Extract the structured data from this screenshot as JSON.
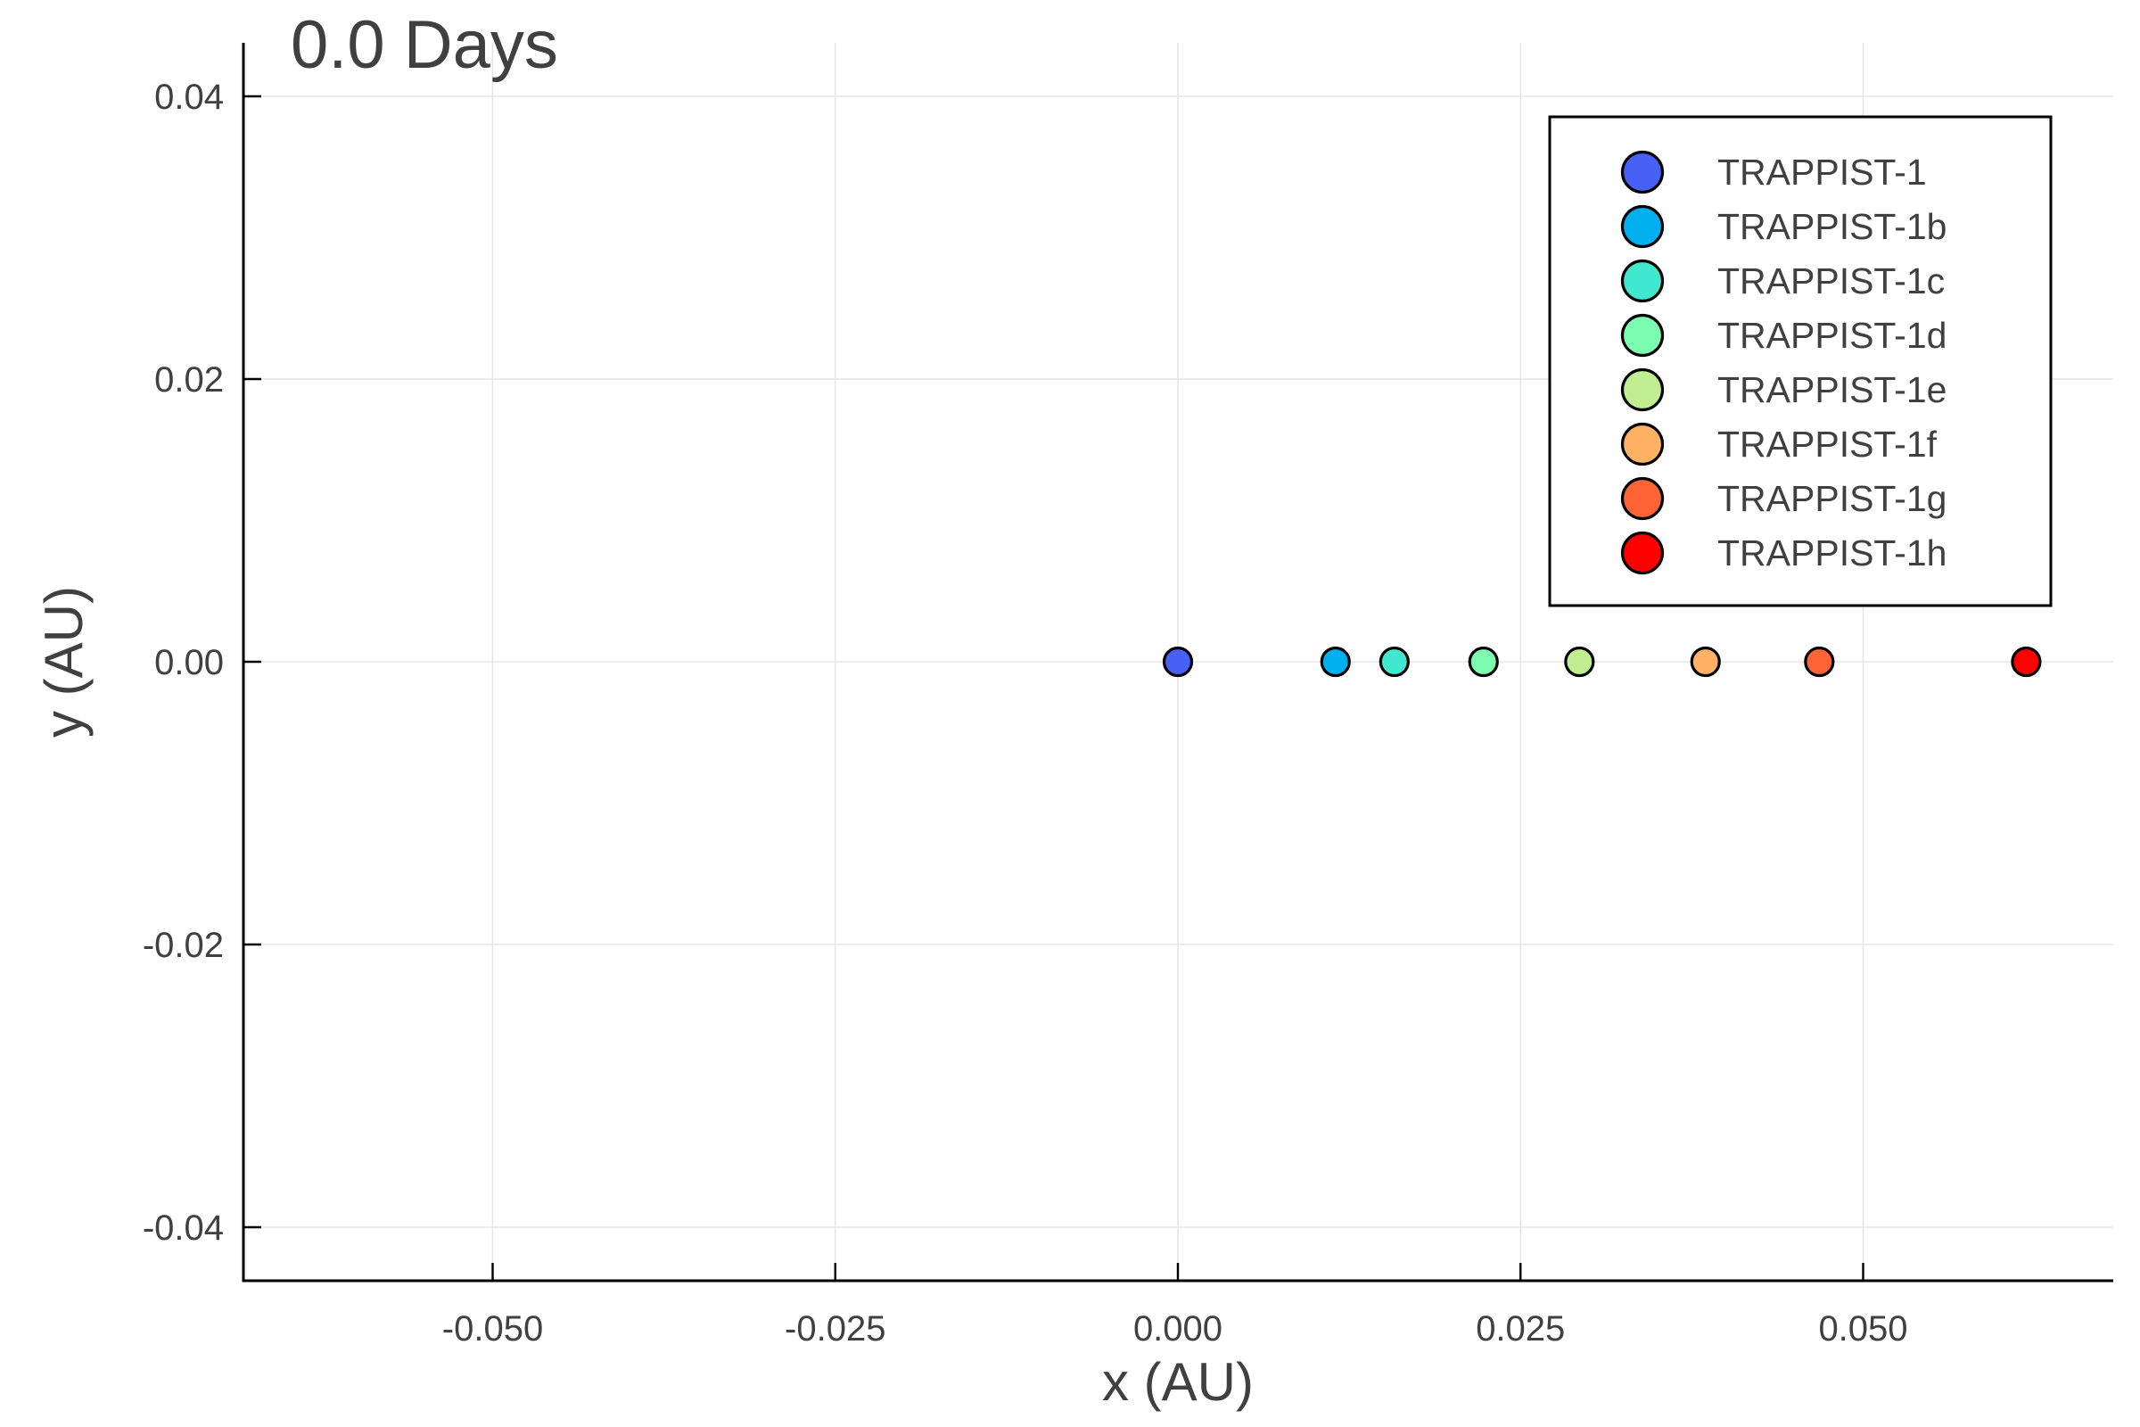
{
  "chart_data": {
    "type": "scatter",
    "title": "0.0 Days",
    "xlabel": "x (AU)",
    "ylabel": "y (AU)",
    "xlim": [
      -0.068,
      0.068
    ],
    "ylim": [
      -0.0438,
      0.0438
    ],
    "xticks": [
      -0.05,
      -0.025,
      0.0,
      0.025,
      0.05
    ],
    "xtick_labels": [
      "-0.050",
      "-0.025",
      "0.000",
      "0.025",
      "0.050"
    ],
    "yticks": [
      -0.04,
      -0.02,
      0.0,
      0.02,
      0.04
    ],
    "ytick_labels": [
      "-0.04",
      "-0.02",
      "0.00",
      "0.02",
      "0.04"
    ],
    "grid": true,
    "legend_position": "top-right",
    "series": [
      {
        "name": "TRAPPIST-1",
        "color": "#4760f5",
        "x": [
          0.0
        ],
        "y": [
          0.0
        ]
      },
      {
        "name": "TRAPPIST-1b",
        "color": "#00b0ee",
        "x": [
          0.0115
        ],
        "y": [
          0.0
        ]
      },
      {
        "name": "TRAPPIST-1c",
        "color": "#40e8d0",
        "x": [
          0.0158
        ],
        "y": [
          0.0
        ]
      },
      {
        "name": "TRAPPIST-1d",
        "color": "#7cfcb0",
        "x": [
          0.0223
        ],
        "y": [
          0.0
        ]
      },
      {
        "name": "TRAPPIST-1e",
        "color": "#c0ee90",
        "x": [
          0.0293
        ],
        "y": [
          0.0
        ]
      },
      {
        "name": "TRAPPIST-1f",
        "color": "#ffb266",
        "x": [
          0.0385
        ],
        "y": [
          0.0
        ]
      },
      {
        "name": "TRAPPIST-1g",
        "color": "#ff6436",
        "x": [
          0.0468
        ],
        "y": [
          0.0
        ]
      },
      {
        "name": "TRAPPIST-1h",
        "color": "#ff0000",
        "x": [
          0.0619
        ],
        "y": [
          0.0
        ]
      }
    ]
  }
}
